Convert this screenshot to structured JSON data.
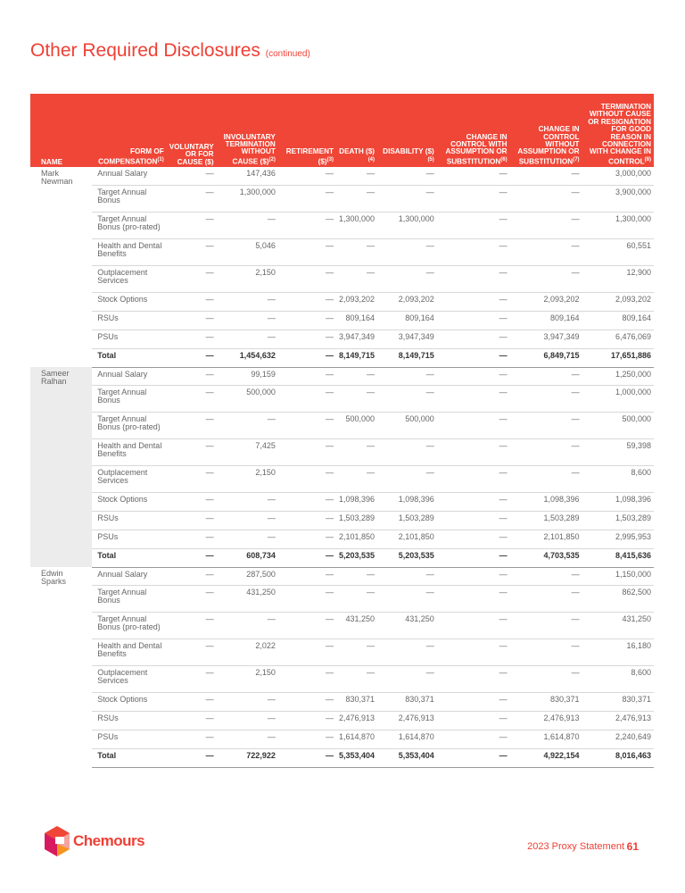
{
  "title": "Other Required Disclosures",
  "title_suffix": "(continued)",
  "headers": [
    {
      "t": "Name",
      "s": ""
    },
    {
      "t": "Form of Compensation",
      "s": "(1)"
    },
    {
      "t": "Voluntary or for Cause ($)",
      "s": ""
    },
    {
      "t": "Involuntary Termination Without Cause ($)",
      "s": "(2)"
    },
    {
      "t": "Retirement ($)",
      "s": "(3)"
    },
    {
      "t": "Death ($)",
      "s": "(4)"
    },
    {
      "t": "Disability ($)",
      "s": "(5)"
    },
    {
      "t": "Change in Control with Assumption or Substitution",
      "s": "(6)"
    },
    {
      "t": "Change in Control without Assumption or Substitution",
      "s": "(7)"
    },
    {
      "t": "Termination without Cause or Resignation for Good Reason in Connection with Change in Control",
      "s": "(8)"
    }
  ],
  "groups": [
    {
      "name": "Mark Newman",
      "rows": [
        [
          "Annual Salary",
          "—",
          "147,436",
          "—",
          "—",
          "—",
          "—",
          "—",
          "3,000,000"
        ],
        [
          "Target Annual Bonus",
          "—",
          "1,300,000",
          "—",
          "—",
          "—",
          "—",
          "—",
          "3,900,000"
        ],
        [
          "Target Annual Bonus (pro-rated)",
          "—",
          "—",
          "—",
          "1,300,000",
          "1,300,000",
          "—",
          "—",
          "1,300,000"
        ],
        [
          "Health and Dental Benefits",
          "—",
          "5,046",
          "—",
          "—",
          "—",
          "—",
          "—",
          "60,551"
        ],
        [
          "Outplacement Services",
          "—",
          "2,150",
          "—",
          "—",
          "—",
          "—",
          "—",
          "12,900"
        ],
        [
          "Stock Options",
          "—",
          "—",
          "—",
          "2,093,202",
          "2,093,202",
          "—",
          "2,093,202",
          "2,093,202"
        ],
        [
          "RSUs",
          "—",
          "—",
          "—",
          "809,164",
          "809,164",
          "—",
          "809,164",
          "809,164"
        ],
        [
          "PSUs",
          "—",
          "—",
          "—",
          "3,947,349",
          "3,947,349",
          "—",
          "3,947,349",
          "6,476,069"
        ],
        [
          "Total",
          "—",
          "1,454,632",
          "—",
          "8,149,715",
          "8,149,715",
          "—",
          "6,849,715",
          "17,651,886"
        ]
      ]
    },
    {
      "name": "Sameer Ralhan",
      "rows": [
        [
          "Annual Salary",
          "—",
          "99,159",
          "—",
          "—",
          "—",
          "—",
          "—",
          "1,250,000"
        ],
        [
          "Target Annual Bonus",
          "—",
          "500,000",
          "—",
          "—",
          "—",
          "—",
          "—",
          "1,000,000"
        ],
        [
          "Target Annual Bonus (pro-rated)",
          "—",
          "—",
          "—",
          "500,000",
          "500,000",
          "—",
          "—",
          "500,000"
        ],
        [
          "Health and Dental Benefits",
          "—",
          "7,425",
          "—",
          "—",
          "—",
          "—",
          "—",
          "59,398"
        ],
        [
          "Outplacement Services",
          "—",
          "2,150",
          "—",
          "—",
          "—",
          "—",
          "—",
          "8,600"
        ],
        [
          "Stock Options",
          "—",
          "—",
          "—",
          "1,098,396",
          "1,098,396",
          "—",
          "1,098,396",
          "1,098,396"
        ],
        [
          "RSUs",
          "—",
          "—",
          "—",
          "1,503,289",
          "1,503,289",
          "—",
          "1,503,289",
          "1,503,289"
        ],
        [
          "PSUs",
          "—",
          "—",
          "—",
          "2,101,850",
          "2,101,850",
          "—",
          "2,101,850",
          "2,995,953"
        ],
        [
          "Total",
          "—",
          "608,734",
          "—",
          "5,203,535",
          "5,203,535",
          "—",
          "4,703,535",
          "8,415,636"
        ]
      ]
    },
    {
      "name": "Edwin Sparks",
      "rows": [
        [
          "Annual Salary",
          "—",
          "287,500",
          "—",
          "—",
          "—",
          "—",
          "—",
          "1,150,000"
        ],
        [
          "Target Annual Bonus",
          "—",
          "431,250",
          "—",
          "—",
          "—",
          "—",
          "—",
          "862,500"
        ],
        [
          "Target Annual Bonus (pro-rated)",
          "—",
          "—",
          "—",
          "431,250",
          "431,250",
          "—",
          "—",
          "431,250"
        ],
        [
          "Health and Dental Benefits",
          "—",
          "2,022",
          "—",
          "—",
          "—",
          "—",
          "—",
          "16,180"
        ],
        [
          "Outplacement Services",
          "—",
          "2,150",
          "—",
          "—",
          "—",
          "—",
          "—",
          "8,600"
        ],
        [
          "Stock Options",
          "—",
          "—",
          "—",
          "830,371",
          "830,371",
          "—",
          "830,371",
          "830,371"
        ],
        [
          "RSUs",
          "—",
          "—",
          "—",
          "2,476,913",
          "2,476,913",
          "—",
          "2,476,913",
          "2,476,913"
        ],
        [
          "PSUs",
          "—",
          "—",
          "—",
          "1,614,870",
          "1,614,870",
          "—",
          "1,614,870",
          "2,240,649"
        ],
        [
          "Total",
          "—",
          "722,922",
          "—",
          "5,353,404",
          "5,353,404",
          "—",
          "4,922,154",
          "8,016,463"
        ]
      ]
    }
  ],
  "footer": {
    "logo": "Chemours",
    "doc": "2023 Proxy Statement",
    "page": "61"
  },
  "colors": {
    "accent": "#ef4637"
  }
}
